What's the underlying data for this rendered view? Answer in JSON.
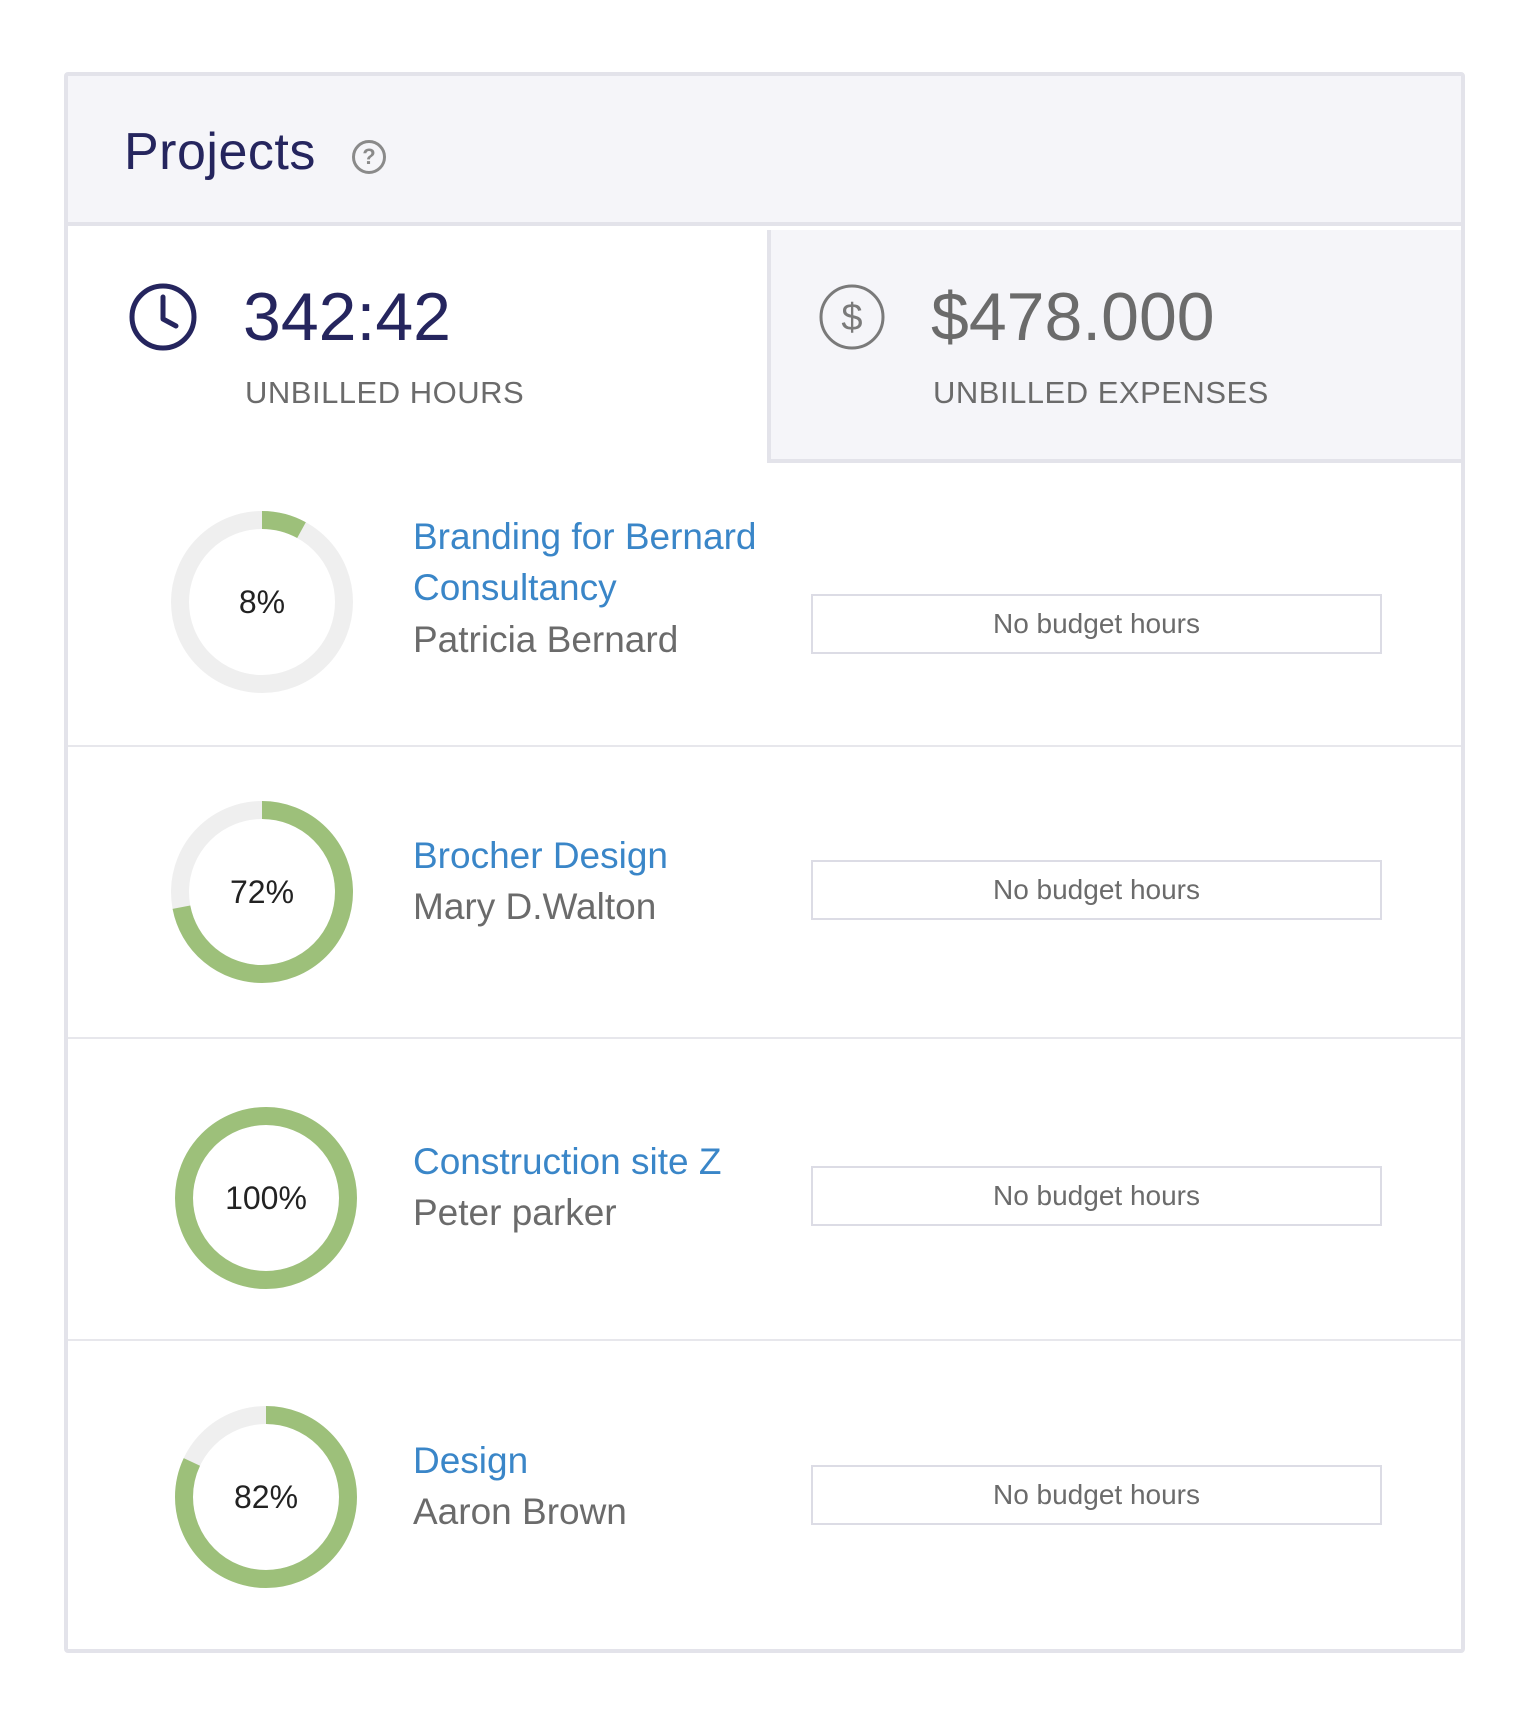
{
  "header": {
    "title": "Projects",
    "help_icon": "?"
  },
  "stats": {
    "hours": {
      "icon": "clock-icon",
      "value": "342:42",
      "label": "UNBILLED HOURS"
    },
    "expenses": {
      "icon": "dollar-icon",
      "value": "$478.000",
      "label": "UNBILLED EXPENSES"
    }
  },
  "colors": {
    "title": "#25255e",
    "link": "#3a86c8",
    "progress": "#9dc07a",
    "track": "#efefef",
    "panel": "#f5f5f9"
  },
  "projects": [
    {
      "percent": 8,
      "percent_label": "8%",
      "name": "Branding for Bernard Consultancy",
      "client": "Patricia Bernard",
      "budget": "No budget hours"
    },
    {
      "percent": 72,
      "percent_label": "72%",
      "name": "Brocher Design",
      "client": "Mary D.Walton",
      "budget": "No budget hours"
    },
    {
      "percent": 100,
      "percent_label": "100%",
      "name": "Construction site Z",
      "client": "Peter parker",
      "budget": "No budget hours"
    },
    {
      "percent": 82,
      "percent_label": "82%",
      "name": "Design",
      "client": "Aaron Brown",
      "budget": "No budget hours"
    }
  ]
}
